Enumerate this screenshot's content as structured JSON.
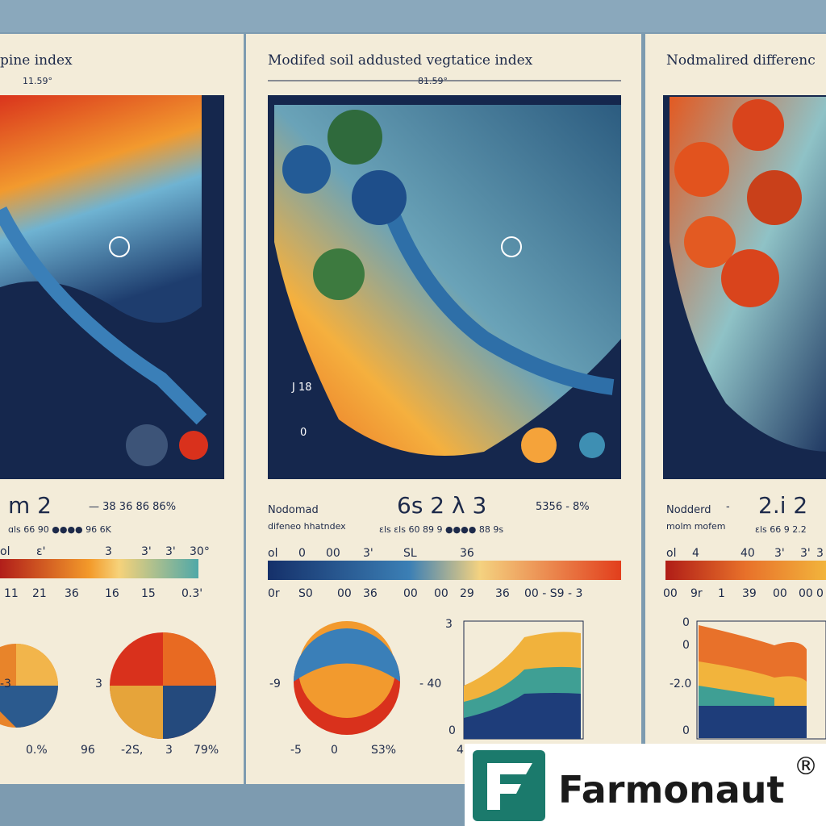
{
  "panels": [
    {
      "title": "pine index",
      "code": "11.59°",
      "big": "m  2",
      "stats": "—   38 36  86  86%",
      "legend": "ɑls  66  90 ●●●●  96  6K",
      "scale_top": [
        "ol",
        "ɛ'",
        "3",
        "3'",
        "3'",
        "30°"
      ],
      "scale_bottom": [
        "11",
        "21",
        "36",
        "16",
        "15",
        "0.3'"
      ],
      "chart_labels": [
        "3",
        "-3",
        "0.%",
        "96",
        "-2S,",
        "3",
        "79%"
      ]
    },
    {
      "title": "Modifed soil addusted vegtatice index",
      "code": "81.59°",
      "name": "Nodomad",
      "sub": "difeneo hhatndex",
      "big": "6s  2  λ  3",
      "stats": "5356 -  8%",
      "legend": "ɛls  ɛls  60  89  9 ●●●●  88  9s",
      "scale_top": [
        "ol",
        "0",
        "00",
        "3'",
        "SL",
        "36"
      ],
      "scale_bottom": [
        "0r",
        "S0",
        "00",
        "36",
        "00",
        "00",
        "29",
        "36",
        "00 - S9 - 3"
      ],
      "map_labels": [
        "J  18",
        "0"
      ],
      "chart_labels": [
        "-9",
        "-5",
        "0",
        "S3%",
        "- 40",
        "3",
        "0",
        "4"
      ]
    },
    {
      "title": "Nodmalired differenc",
      "name": "Nodderd",
      "sub": "molm mofem",
      "big": "2.i   2",
      "stats": "-",
      "legend": "ɛls  66  9  2.2",
      "scale_top": [
        "ol",
        "4",
        "40",
        "3'",
        "3'",
        "3"
      ],
      "scale_bottom": [
        "00",
        "9r",
        "1",
        "39",
        "00",
        "00",
        "0"
      ],
      "chart_labels": [
        "0",
        "0",
        "-2.0",
        "0"
      ]
    }
  ],
  "logo": {
    "name": "Farmonaut",
    "mark": "®"
  }
}
